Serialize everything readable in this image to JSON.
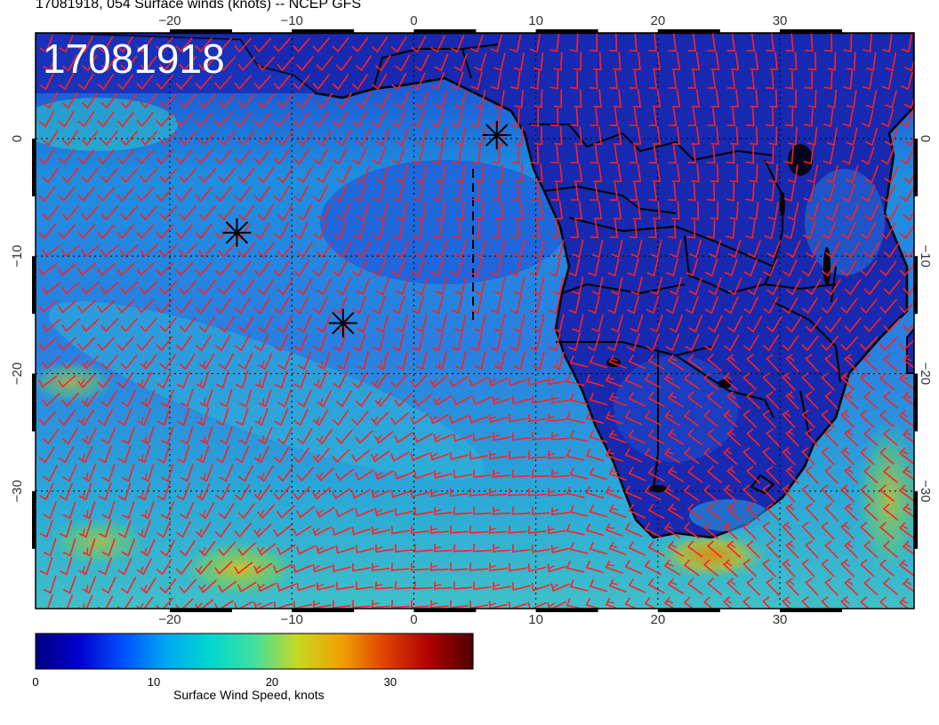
{
  "header": {
    "title": "17081918, 054 Surface winds (knots) -- NCEP GFS"
  },
  "map": {
    "stamp": "17081918",
    "lon_range": [
      -31,
      41
    ],
    "lat_range": [
      -40,
      9
    ],
    "lon_ticks": [
      {
        "value": -20,
        "label": "−20"
      },
      {
        "value": -10,
        "label": "−10"
      },
      {
        "value": 0,
        "label": "0"
      },
      {
        "value": 10,
        "label": "10"
      },
      {
        "value": 20,
        "label": "20"
      },
      {
        "value": 30,
        "label": "30"
      }
    ],
    "lat_ticks": [
      {
        "value": 0,
        "label": "0"
      },
      {
        "value": -10,
        "label": "−10"
      },
      {
        "value": -20,
        "label": "−20"
      },
      {
        "value": -30,
        "label": "−30"
      }
    ],
    "gridlines": "dotted",
    "markers": [
      {
        "name": "star-marker-1",
        "lon": -14.5,
        "lat": -8.0
      },
      {
        "name": "star-marker-2",
        "lon": -5.8,
        "lat": -15.7
      },
      {
        "name": "star-marker-3",
        "lon": 6.8,
        "lat": 0.3
      }
    ],
    "barb_color": "#ff2020",
    "coast_color": "#000000",
    "ocean_color": "#1f6fe0",
    "land_color": "#1526a8"
  },
  "colorbar": {
    "label": "Surface Wind Speed, knots",
    "range": [
      0,
      37
    ],
    "ticks": [
      {
        "value": 0,
        "label": "0"
      },
      {
        "value": 10,
        "label": "10"
      },
      {
        "value": 20,
        "label": "20"
      },
      {
        "value": 30,
        "label": "30"
      }
    ],
    "colors": [
      "#000080",
      "#0000d0",
      "#0050ff",
      "#00a8f0",
      "#00d8d0",
      "#40e0a0",
      "#c8d820",
      "#f0a000",
      "#e04000",
      "#b00000",
      "#500000"
    ]
  }
}
